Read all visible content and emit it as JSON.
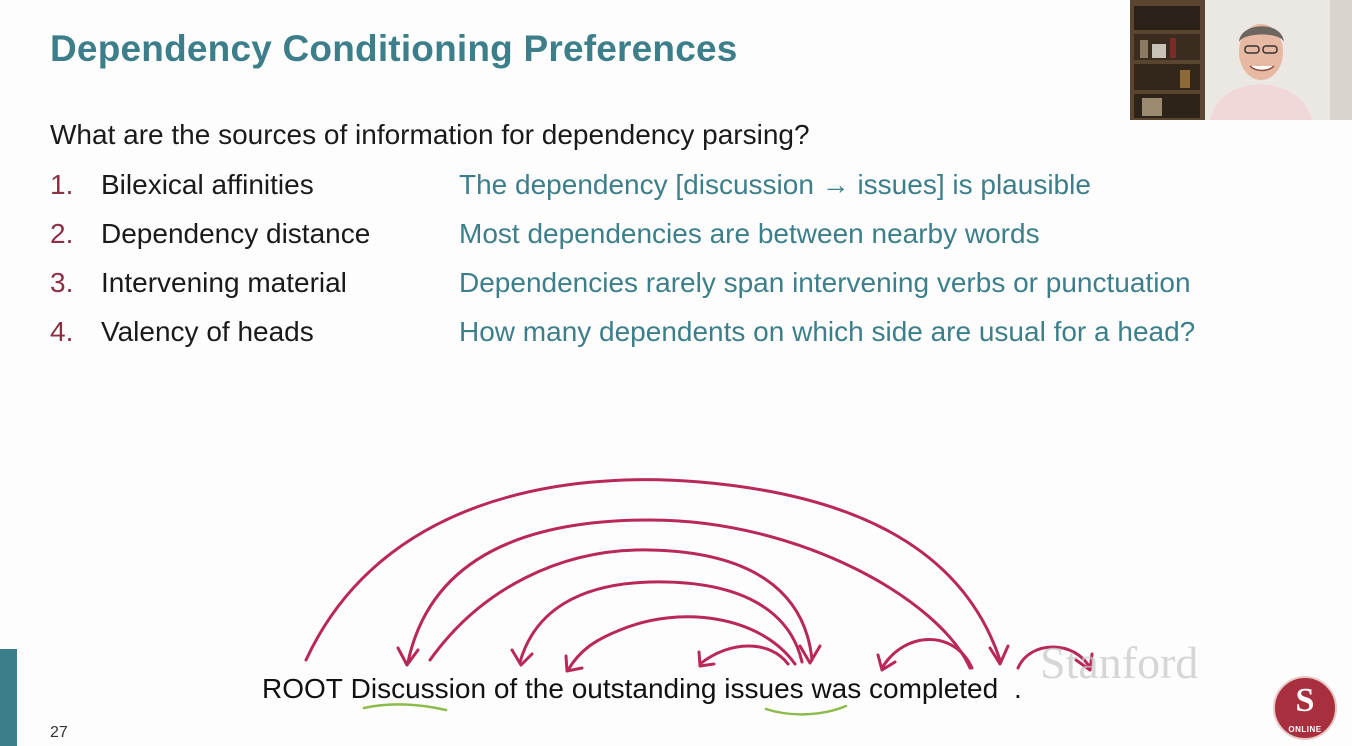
{
  "slide": {
    "title": "Dependency Conditioning Preferences",
    "question": "What are the sources of information for dependency parsing?",
    "items": [
      {
        "num": "1.",
        "term": "Bilexical affinities",
        "desc": "The dependency [discussion → issues] is plausible"
      },
      {
        "num": "2.",
        "term": "Dependency distance",
        "desc": "Most dependencies are between nearby words"
      },
      {
        "num": "3.",
        "term": "Intervening material",
        "desc": "Dependencies rarely span intervening verbs or punctuation"
      },
      {
        "num": "4.",
        "term": "Valency of heads",
        "desc": "How many dependents on which side are usual for a head?"
      }
    ],
    "sentence": [
      "ROOT",
      "Discussion",
      "of",
      "the",
      "outstanding",
      "issues",
      "was",
      "completed",
      "."
    ],
    "page_number": "27",
    "watermark": "Stanford",
    "seal_text": "ONLINE",
    "seal_letter": "S"
  },
  "colors": {
    "teal": "#3c7f8a",
    "maroon": "#8b2f45",
    "arc": "#b8285a",
    "underline": "#8dbb4a"
  },
  "icons": {
    "logo": "stanford-online-seal-icon",
    "video": "presenter-webcam-icon"
  }
}
